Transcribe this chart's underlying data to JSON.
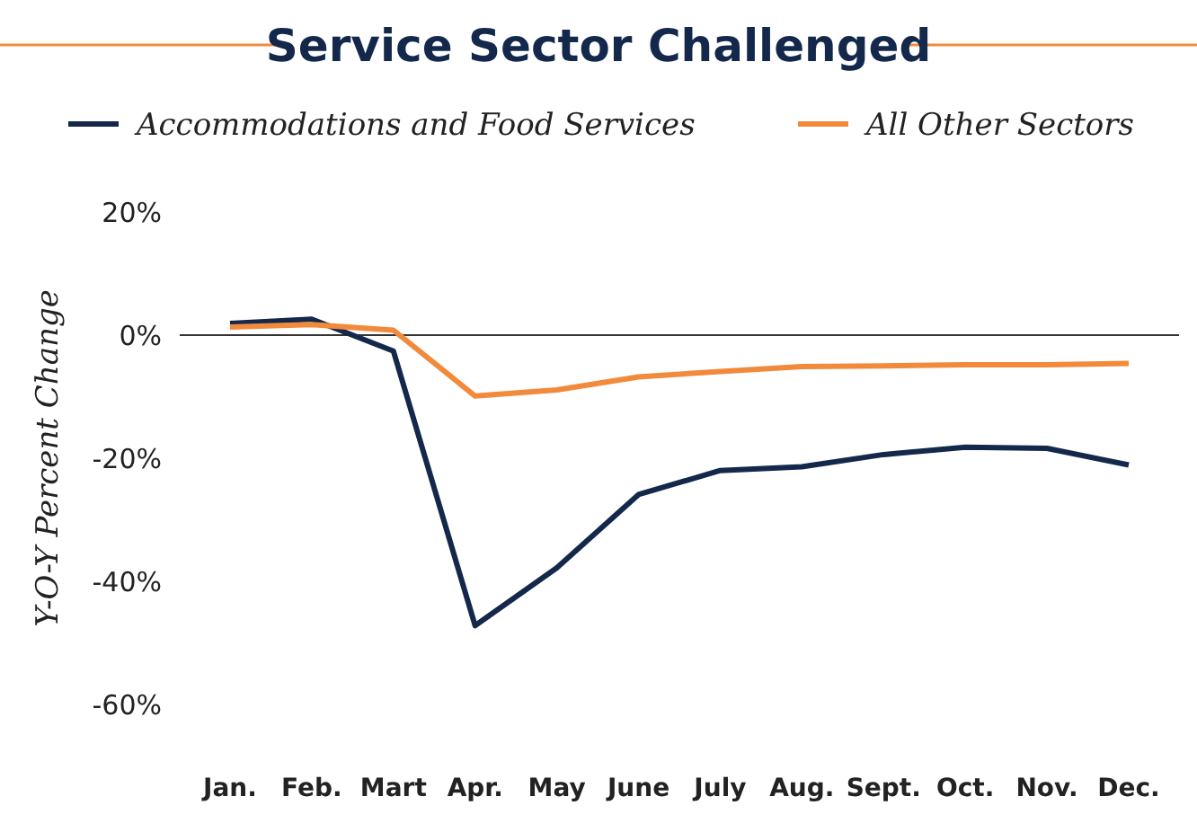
{
  "chart_data": {
    "type": "line",
    "title": "Service Sector Challenged",
    "ylabel": "Y-O-Y Percent Change",
    "categories": [
      "Jan.",
      "Feb.",
      "Mart",
      "Apr.",
      "May",
      "June",
      "July",
      "Aug.",
      "Sept.",
      "Oct.",
      "Nov.",
      "Dec."
    ],
    "series": [
      {
        "name": "Accommodations and Food Services",
        "color": "#14284b",
        "values": [
          1.9,
          2.6,
          -2.6,
          -47.2,
          -37.8,
          -25.9,
          -22,
          -21.4,
          -19.4,
          -18.2,
          -18.4,
          -21.1
        ]
      },
      {
        "name": "All Other Sectors",
        "color": "#f28a3c",
        "values": [
          1.3,
          1.7,
          0.8,
          -9.9,
          -8.9,
          -6.8,
          -5.9,
          -5.1,
          -5,
          -4.8,
          -4.8,
          -4.6
        ]
      }
    ],
    "ylim": [
      -60,
      20
    ],
    "yticks": [
      {
        "value": -60,
        "label": "-60%"
      },
      {
        "value": -40,
        "label": "-40%"
      },
      {
        "value": -20,
        "label": "-20%"
      },
      {
        "value": 0,
        "label": "0%"
      },
      {
        "value": 20,
        "label": "20%"
      }
    ],
    "ref_lines": [
      {
        "axis": "y",
        "value": 0,
        "color": "#333333"
      }
    ],
    "legend": "top",
    "grid": false,
    "marker": "none",
    "line_style": "solid"
  }
}
